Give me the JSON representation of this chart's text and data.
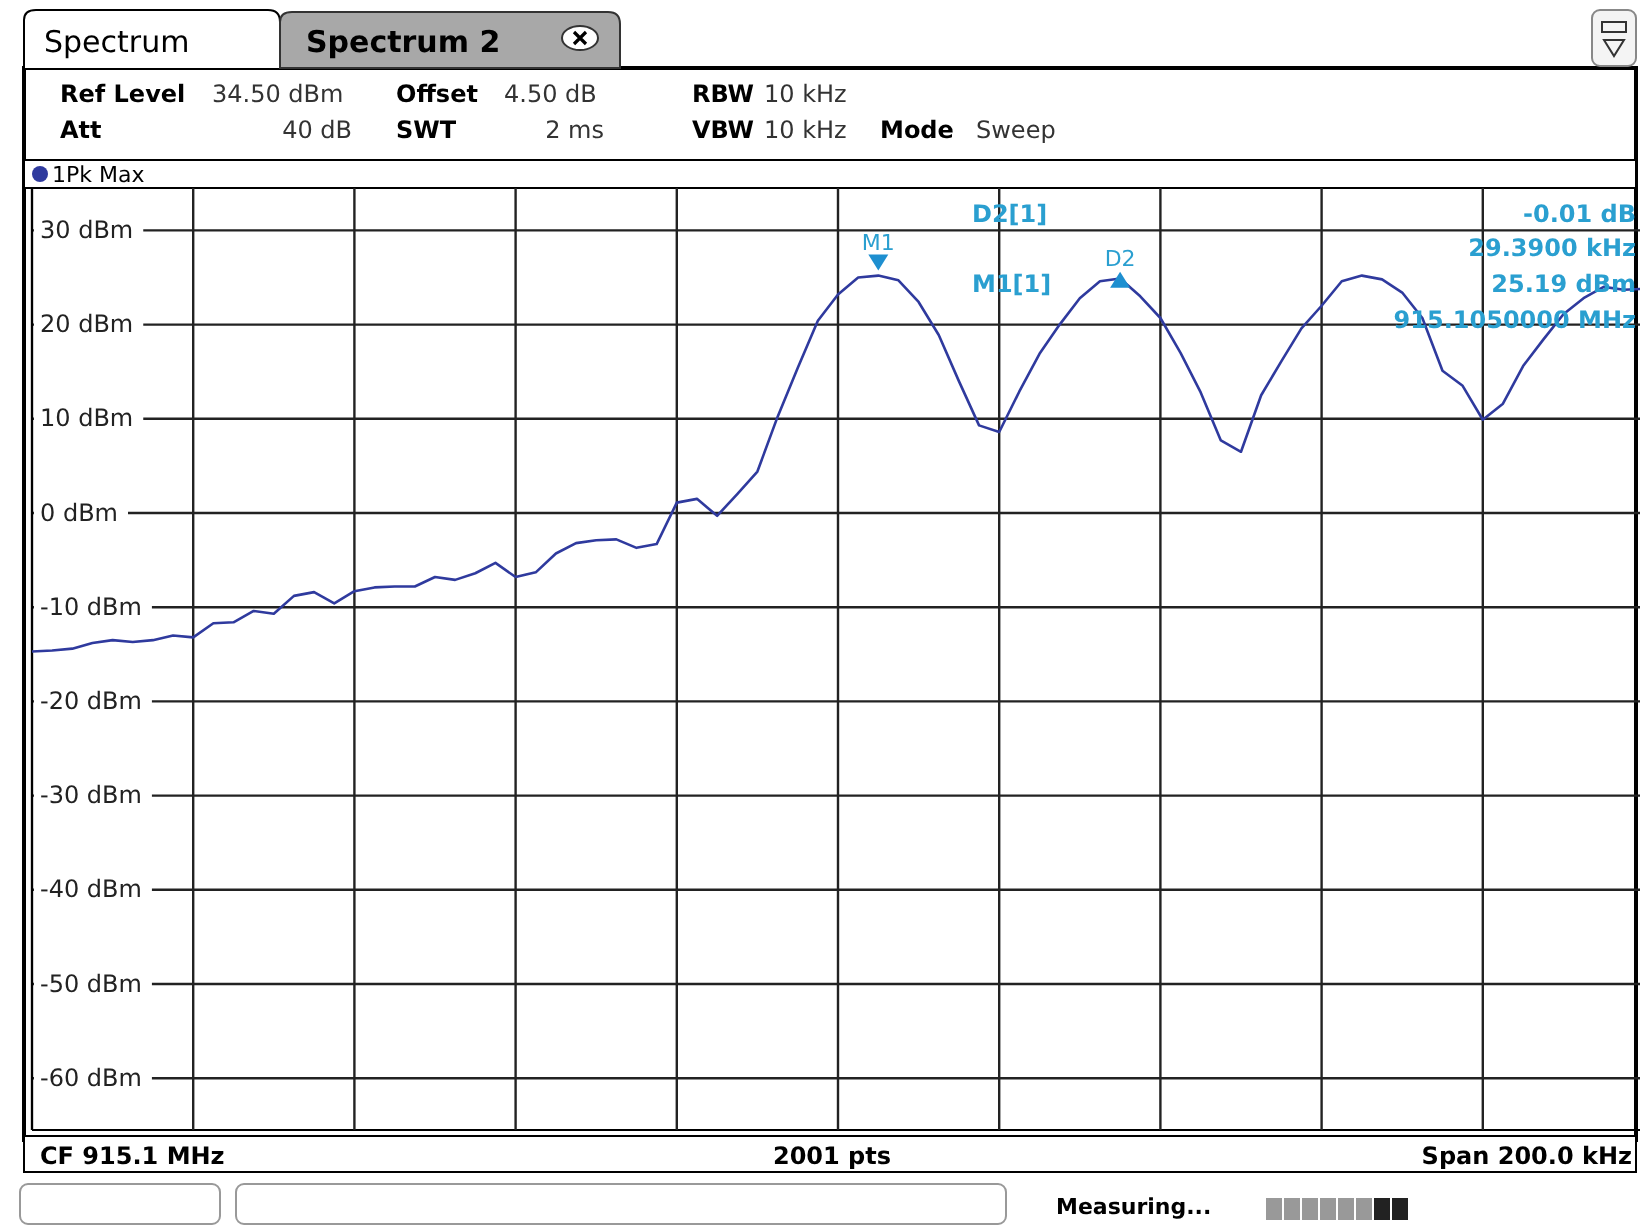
{
  "chart_data": {
    "type": "line",
    "legend": "top left",
    "grid": true,
    "tick_labels": "y",
    "marker": "none",
    "line_style": "solid",
    "categories": [
      null,
      null,
      null,
      null,
      null,
      null,
      null,
      null,
      null,
      null,
      null,
      null,
      null,
      null,
      null,
      null,
      null,
      null,
      null,
      null,
      null,
      null,
      null,
      null,
      null,
      null,
      null,
      null,
      null,
      null,
      null,
      null,
      null,
      null,
      null,
      null,
      null,
      null,
      null,
      null,
      null,
      null,
      null,
      null,
      null,
      null,
      null,
      null,
      null,
      null,
      null,
      null,
      null,
      null,
      null,
      null,
      null,
      null,
      null,
      null,
      null,
      null,
      null,
      null,
      null,
      null,
      null,
      null,
      null,
      null,
      null,
      null,
      null,
      null,
      null,
      null,
      null,
      null,
      null,
      null,
      null
    ],
    "ylim": [
      -65.5,
      34.5
    ],
    "yticks": [
      {
        "value": 30,
        "label": "30 dBm"
      },
      {
        "value": 20,
        "label": "20 dBm"
      },
      {
        "value": 10,
        "label": "10 dBm"
      },
      {
        "value": 0,
        "label": "0 dBm"
      },
      {
        "value": -10,
        "label": "-10 dBm"
      },
      {
        "value": -20,
        "label": "-20 dBm"
      },
      {
        "value": -30,
        "label": "-30 dBm"
      },
      {
        "value": -40,
        "label": "-40 dBm"
      },
      {
        "value": -50,
        "label": "-50 dBm"
      },
      {
        "value": -60,
        "label": "-60 dBm"
      }
    ],
    "series": [
      {
        "name": "1Pk Max",
        "color": "#2f3a9e",
        "values": [
          -14.7,
          -14.6,
          -14.4,
          -13.8,
          -13.5,
          -13.7,
          -13.5,
          -13.0,
          -13.2,
          -11.7,
          -11.6,
          -10.4,
          -10.7,
          -8.8,
          -8.4,
          -9.6,
          -8.3,
          -7.9,
          -7.8,
          -7.8,
          -6.8,
          -7.1,
          -6.4,
          -5.3,
          -6.8,
          -6.3,
          -4.3,
          -3.2,
          -2.9,
          -2.8,
          -3.7,
          -3.3,
          1.1,
          1.5,
          -0.3,
          2.0,
          4.4,
          10.2,
          15.4,
          20.4,
          23.2,
          25.0,
          25.2,
          24.7,
          22.4,
          18.9,
          14.0,
          9.3,
          8.6,
          12.9,
          16.9,
          20.0,
          22.8,
          24.6,
          24.9,
          23.0,
          20.7,
          17.0,
          12.8,
          7.7,
          6.5,
          12.5,
          16.1,
          19.6,
          22.0,
          24.6,
          25.2,
          24.8,
          23.4,
          20.7,
          15.1,
          13.5,
          9.9,
          11.6,
          15.6,
          18.4,
          21.1,
          22.8,
          24.0,
          23.7,
          23.8
        ]
      }
    ],
    "annotations": [
      "Spectrum",
      "Spectrum 2",
      "Ref Level",
      "34.50 dBm",
      "Offset",
      "4.50 dB",
      "RBW",
      "10 kHz",
      "Att",
      "40 dB",
      "SWT",
      "2 ms",
      "VBW",
      "10 kHz",
      "Mode",
      "Sweep",
      "D2[1]",
      "-0.01 dB",
      "29.3900 kHz",
      "M1[1]",
      "25.19 dBm",
      "915.1050000 MHz",
      "CF 915.1 MHz",
      "2001 pts",
      "Span 200.0 kHz",
      "Measuring...",
      {
        "text": "M1",
        "y": 26.6
      },
      {
        "text": "D2",
        "y": 25.18
      }
    ]
  }
}
